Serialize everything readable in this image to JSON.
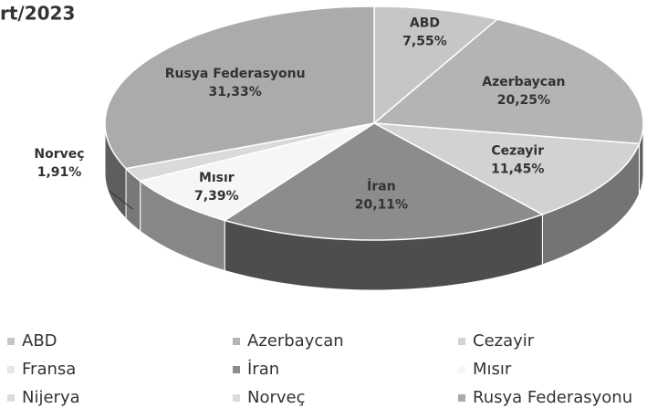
{
  "chart_data": {
    "type": "pie",
    "title": "rt/2023",
    "categories": [
      "ABD",
      "Azerbaycan",
      "Cezayir",
      "Fransa",
      "İran",
      "Mısır",
      "Nijerya",
      "Norveç",
      "Rusya Federasyonu"
    ],
    "values": [
      7.55,
      20.25,
      11.45,
      0,
      20.11,
      7.39,
      0,
      1.91,
      31.33
    ],
    "value_labels": [
      "7,55%",
      "20,25%",
      "11,45%",
      null,
      "20,11%",
      "7,39%",
      null,
      "1,91%",
      "31,33%"
    ],
    "colors": [
      "#c6c6c6",
      "#b4b4b4",
      "#d2d2d2",
      "#e6e6e6",
      "#8c8c8c",
      "#f6f6f6",
      "#dcdcdc",
      "#dadada",
      "#ababab"
    ]
  }
}
